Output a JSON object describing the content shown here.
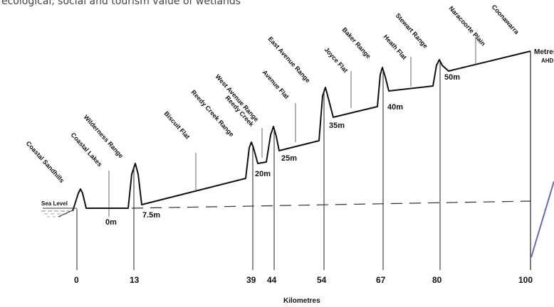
{
  "caption": "ecological, social and tourism value of wetlands",
  "features": [
    "Coastal Sandhills",
    "Coastal Lakes",
    "Wilderness Range",
    "Biscuit Flat",
    "Reedy Creek Range",
    "Reedy Creek",
    "West Avenue Range",
    "Avenue Flat",
    "East Avenue Range",
    "Joyce Flat",
    "Baker Range",
    "Heath Flat",
    "Stewart Range",
    "Naracoorte Plain",
    "Coonawarra"
  ],
  "elevations": [
    "0m",
    "7.5m",
    "20m",
    "25m",
    "35m",
    "40m",
    "50m"
  ],
  "sea_level_label": "Sea Level",
  "units_label": "Metres",
  "units_sub": "AHD",
  "km_ticks": [
    "0",
    "13",
    "39",
    "44",
    "54",
    "67",
    "80",
    "100"
  ],
  "x_axis_title": "Kilometres"
}
